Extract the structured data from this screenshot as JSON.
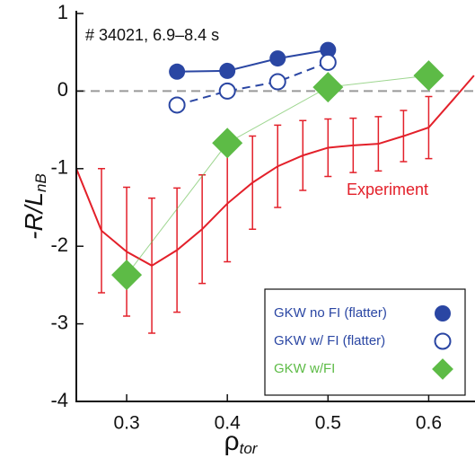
{
  "chart_data": {
    "type": "line",
    "annotation": "# 34021, 6.9–8.4 s",
    "xlabel": {
      "main": "ρ",
      "sub": "tor"
    },
    "ylabel": {
      "main": "-R/L",
      "sub": "nB"
    },
    "xlim": [
      0.25,
      0.646
    ],
    "ylim": [
      -4,
      1
    ],
    "xticks": [
      0.3,
      0.4,
      0.5,
      0.6
    ],
    "yticks": [
      -4,
      -3,
      -2,
      -1,
      0,
      1
    ],
    "zero_line": true,
    "legend": "lower right",
    "series": [
      {
        "name": "Experiment",
        "color": "#e3202a",
        "marker": "none",
        "linestyle": "solid",
        "in_legend": false,
        "x": [
          0.25,
          0.275,
          0.3,
          0.325,
          0.35,
          0.375,
          0.4,
          0.425,
          0.45,
          0.475,
          0.5,
          0.525,
          0.55,
          0.575,
          0.6,
          0.625,
          0.645
        ],
        "values": [
          -1.0,
          -1.8,
          -2.07,
          -2.25,
          -2.05,
          -1.78,
          -1.45,
          -1.18,
          -0.97,
          -0.83,
          -0.73,
          -0.7,
          -0.68,
          -0.58,
          -0.47,
          -0.1,
          0.2
        ],
        "errors": [
          null,
          0.8,
          0.83,
          0.87,
          0.8,
          0.7,
          0.75,
          0.6,
          0.53,
          0.45,
          0.37,
          0.35,
          0.35,
          0.33,
          0.4,
          null,
          null
        ]
      },
      {
        "name": "GKW no FI (flatter)",
        "color": "#2a46a3",
        "marker": "circle",
        "linestyle": "solid",
        "in_legend": true,
        "x": [
          0.35,
          0.4,
          0.45,
          0.5
        ],
        "values": [
          0.25,
          0.26,
          0.42,
          0.53
        ]
      },
      {
        "name": "GKW w/ FI (flatter)",
        "color": "#2a46a3",
        "marker": "open-circle",
        "linestyle": "dashed",
        "in_legend": true,
        "x": [
          0.35,
          0.4,
          0.45,
          0.5
        ],
        "values": [
          -0.18,
          0.0,
          0.12,
          0.37
        ]
      },
      {
        "name": "GKW w/FI",
        "color": "#5dbb46",
        "marker": "diamond",
        "linestyle": "thin",
        "in_legend": true,
        "x": [
          0.3,
          0.4,
          0.5,
          0.6
        ],
        "values": [
          -2.37,
          -0.67,
          0.05,
          0.2
        ]
      }
    ]
  }
}
